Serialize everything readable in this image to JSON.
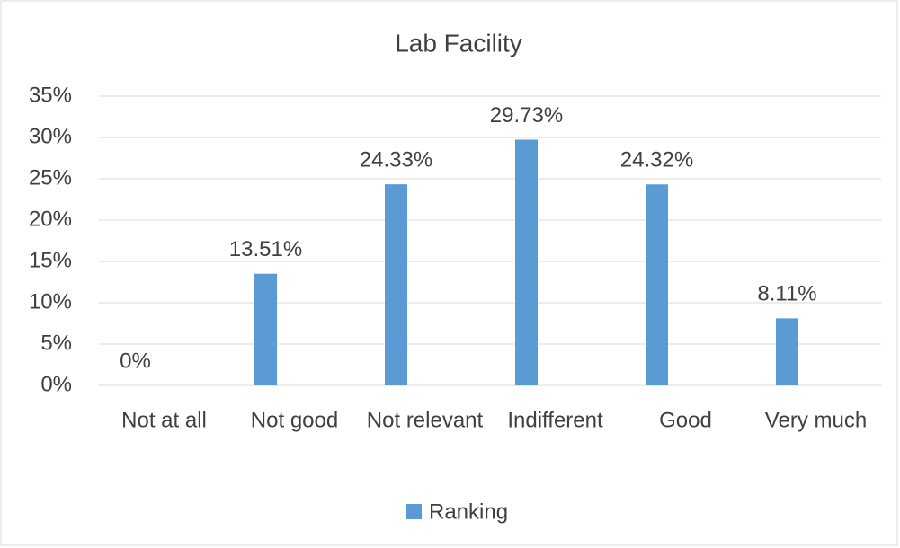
{
  "chart_data": {
    "type": "bar",
    "title": "Lab Facility",
    "categories": [
      "Not at all",
      "Not good",
      "Not relevant",
      "Indifferent",
      "Good",
      "Very much"
    ],
    "series": [
      {
        "name": "Ranking",
        "color": "#5b9bd5",
        "values": [
          0,
          13.51,
          24.33,
          29.73,
          24.32,
          8.11
        ],
        "value_labels": [
          "0%",
          "13.51%",
          "24.33%",
          "29.73%",
          "24.32%",
          "8.11%"
        ]
      }
    ],
    "ylim": [
      0,
      35
    ],
    "yticks": [
      {
        "value": 0,
        "label": "0%"
      },
      {
        "value": 5,
        "label": "5%"
      },
      {
        "value": 10,
        "label": "10%"
      },
      {
        "value": 15,
        "label": "15%"
      },
      {
        "value": 20,
        "label": "20%"
      },
      {
        "value": 25,
        "label": "25%"
      },
      {
        "value": 30,
        "label": "30%"
      },
      {
        "value": 35,
        "label": "35%"
      }
    ],
    "grid": true,
    "legend": "bottom"
  }
}
